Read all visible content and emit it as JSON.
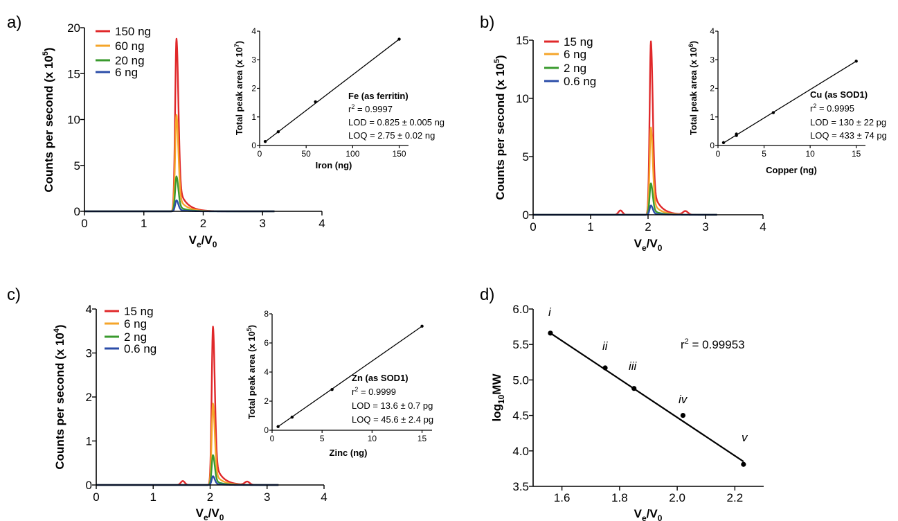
{
  "chart_data": [
    {
      "panel": "a)",
      "type": "line",
      "xlabel": "Ve/V0",
      "ylabel": "Counts per second (x 10^5)",
      "xlim": [
        0,
        4
      ],
      "ylim": [
        0,
        20
      ],
      "xticks": [
        "0",
        "1",
        "2",
        "3",
        "4"
      ],
      "yticks": [
        "0",
        "5",
        "10",
        "15",
        "20"
      ],
      "peak_x": 1.55,
      "series": [
        {
          "name": "150 ng",
          "color": "#e0282a",
          "peak": 18.8
        },
        {
          "name": "60 ng",
          "color": "#f5a52a",
          "peak": 10.5
        },
        {
          "name": "20 ng",
          "color": "#3a9a2e",
          "peak": 3.8
        },
        {
          "name": "6 ng",
          "color": "#2b4da8",
          "peak": 1.2
        }
      ],
      "inset": {
        "type": "scatter",
        "xlabel": "Iron (ng)",
        "ylabel": "Total peak area (x 10^7)",
        "xlim": [
          0,
          160
        ],
        "ylim": [
          0,
          4
        ],
        "xticks": [
          "0",
          "50",
          "100",
          "150"
        ],
        "yticks": [
          "0",
          "1",
          "2",
          "3",
          "4"
        ],
        "points": [
          [
            6,
            0.14
          ],
          [
            20,
            0.48
          ],
          [
            60,
            1.53
          ],
          [
            150,
            3.72
          ]
        ],
        "fit": [
          [
            6,
            0.13
          ],
          [
            150,
            3.72
          ]
        ],
        "annotation": {
          "title": "Fe (as ferritin)",
          "r2": "r2 = 0.9997",
          "lod": "LOD = 0.825 ± 0.005 ng",
          "loq": "LOQ = 2.75 ± 0.02 ng"
        }
      }
    },
    {
      "panel": "b)",
      "type": "line",
      "xlabel": "Ve/V0",
      "ylabel": "Counts per second (x 10^5)",
      "xlim": [
        0,
        4
      ],
      "ylim": [
        0,
        15
      ],
      "xticks": [
        "0",
        "1",
        "2",
        "3",
        "4"
      ],
      "yticks": [
        "0",
        "5",
        "10",
        "15"
      ],
      "peak_x": 2.05,
      "series": [
        {
          "name": "15 ng",
          "color": "#e0282a",
          "peak": 14.9
        },
        {
          "name": "6 ng",
          "color": "#f5a52a",
          "peak": 7.5
        },
        {
          "name": "2 ng",
          "color": "#3a9a2e",
          "peak": 2.7
        },
        {
          "name": "0.6 ng",
          "color": "#2b4da8",
          "peak": 0.8
        }
      ],
      "inset": {
        "type": "scatter",
        "xlabel": "Copper (ng)",
        "ylabel": "Total peak area (x 10^6)",
        "xlim": [
          0,
          16
        ],
        "ylim": [
          0,
          4
        ],
        "xticks": [
          "0",
          "5",
          "10",
          "15"
        ],
        "yticks": [
          "0",
          "1",
          "2",
          "3",
          "4"
        ],
        "points": [
          [
            0.6,
            0.1
          ],
          [
            2,
            0.35
          ],
          [
            2,
            0.4
          ],
          [
            6,
            1.15
          ],
          [
            15,
            2.95
          ]
        ],
        "fit": [
          [
            0.6,
            0.09
          ],
          [
            15,
            2.95
          ]
        ],
        "annotation": {
          "title": "Cu (as SOD1)",
          "r2": "r2 = 0.9995",
          "lod": "LOD = 130 ± 22 pg",
          "loq": "LOQ = 433 ± 74 pg"
        }
      }
    },
    {
      "panel": "c)",
      "type": "line",
      "xlabel": "Ve/V0",
      "ylabel": "Counts per second (x 10^4)",
      "xlim": [
        0,
        4
      ],
      "ylim": [
        0,
        4
      ],
      "xticks": [
        "0",
        "1",
        "2",
        "3",
        "4"
      ],
      "yticks": [
        "0",
        "1",
        "2",
        "3",
        "4"
      ],
      "peak_x": 2.05,
      "series": [
        {
          "name": "15 ng",
          "color": "#e0282a",
          "peak": 3.6
        },
        {
          "name": "6 ng",
          "color": "#f5a52a",
          "peak": 1.85
        },
        {
          "name": "2 ng",
          "color": "#3a9a2e",
          "peak": 0.68
        },
        {
          "name": "0.6 ng",
          "color": "#2b4da8",
          "peak": 0.2
        }
      ],
      "inset": {
        "type": "scatter",
        "xlabel": "Zinc (ng)",
        "ylabel": "Total peak area (x 10^5)",
        "xlim": [
          0,
          16
        ],
        "ylim": [
          0,
          8
        ],
        "xticks": [
          "0",
          "5",
          "10",
          "15"
        ],
        "yticks": [
          "0",
          "2",
          "4",
          "6",
          "8"
        ],
        "points": [
          [
            0.6,
            0.25
          ],
          [
            2,
            0.9
          ],
          [
            6,
            2.8
          ],
          [
            15,
            7.15
          ]
        ],
        "fit": [
          [
            0.6,
            0.25
          ],
          [
            15,
            7.15
          ]
        ],
        "annotation": {
          "title": "Zn (as SOD1)",
          "r2": "r2 = 0.9999",
          "lod": "LOD = 13.6 ± 0.7 pg",
          "loq": "LOQ = 45.6 ± 2.4 pg"
        }
      }
    },
    {
      "panel": "d)",
      "type": "scatter",
      "xlabel": "Ve/V0",
      "ylabel": "log10MW",
      "xlim": [
        1.5,
        2.3
      ],
      "ylim": [
        3.5,
        6.0
      ],
      "xticks": [
        "1.6",
        "1.8",
        "2.0",
        "2.2"
      ],
      "yticks": [
        "3.5",
        "4.0",
        "4.5",
        "5.0",
        "5.5",
        "6.0"
      ],
      "points": [
        {
          "label": "i",
          "x": 1.56,
          "y": 5.66
        },
        {
          "label": "ii",
          "x": 1.75,
          "y": 5.17
        },
        {
          "label": "iii",
          "x": 1.85,
          "y": 4.88
        },
        {
          "label": "iv",
          "x": 2.02,
          "y": 4.5
        },
        {
          "label": "v",
          "x": 2.23,
          "y": 3.81
        }
      ],
      "fit": [
        [
          1.56,
          5.66
        ],
        [
          2.23,
          3.85
        ]
      ],
      "annotation": "r2 = 0.99953"
    }
  ]
}
